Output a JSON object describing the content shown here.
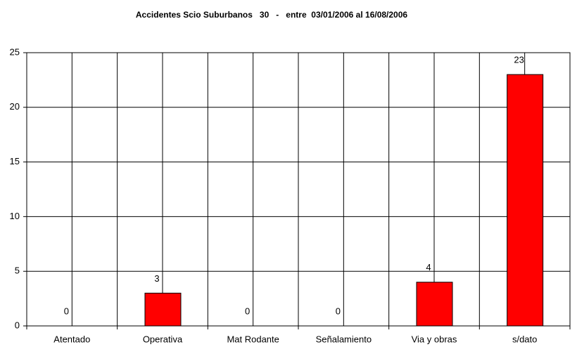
{
  "chart_data": {
    "type": "bar",
    "title": "Accidentes Scio Suburbanos   30   -   entre  03/01/2006 al 16/08/2006",
    "categories": [
      "Atentado",
      "Operativa",
      "Mat Rodante",
      "Señalamiento",
      "Via y obras",
      "s/dato"
    ],
    "values": [
      0,
      3,
      0,
      0,
      4,
      23
    ],
    "color": "#ff0000",
    "ylim": [
      0,
      25
    ],
    "yticks": [
      0,
      5,
      10,
      15,
      20,
      25
    ],
    "grid": true
  }
}
